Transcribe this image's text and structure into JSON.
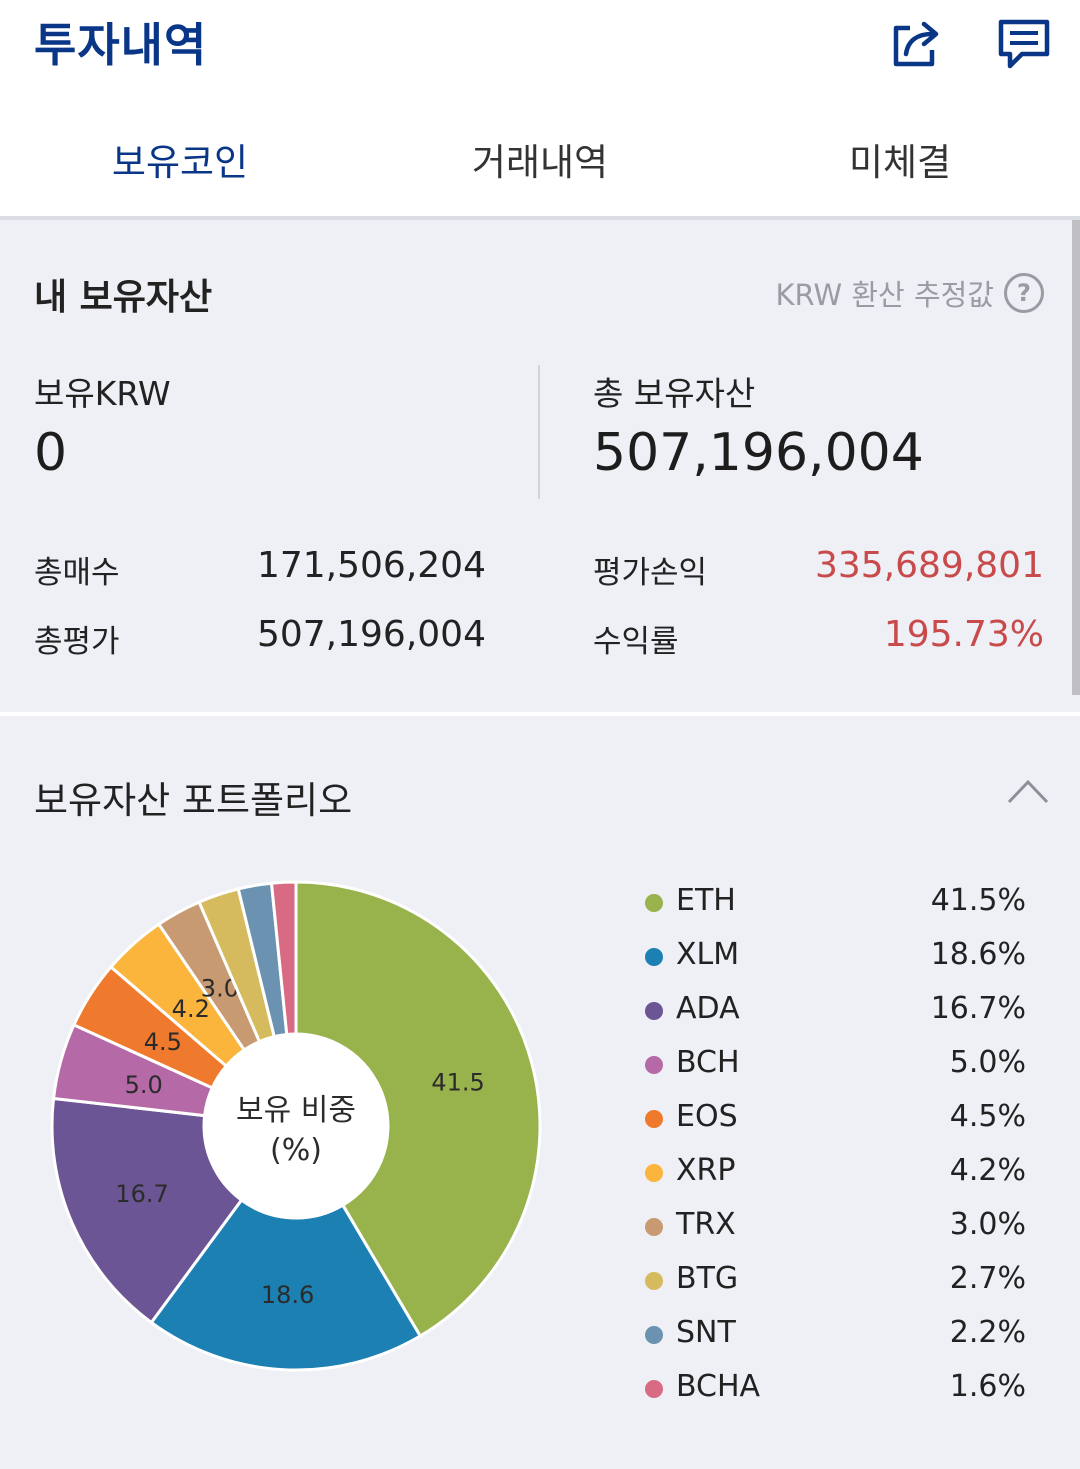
{
  "header": {
    "title": "투자내역",
    "share_icon": "share-icon",
    "message_icon": "message-icon"
  },
  "tabs": [
    {
      "label": "보유코인",
      "active": true
    },
    {
      "label": "거래내역",
      "active": false
    },
    {
      "label": "미체결",
      "active": false
    }
  ],
  "assets": {
    "title": "내 보유자산",
    "krw_note": "KRW 환산 추정값",
    "held_krw_label": "보유KRW",
    "held_krw_value": "0",
    "total_assets_label": "총 보유자산",
    "total_assets_value": "507,196,004",
    "rows": {
      "total_buy_label": "총매수",
      "total_buy_value": "171,506,204",
      "total_eval_label": "총평가",
      "total_eval_value": "507,196,004",
      "pnl_label": "평가손익",
      "pnl_value": "335,689,801",
      "return_label": "수익률",
      "return_value": "195.73%"
    },
    "profit_color": "#c84a4a"
  },
  "portfolio": {
    "title": "보유자산 포트폴리오",
    "center_label_line1": "보유 비중",
    "center_label_line2": "(%)",
    "legend": [
      {
        "name": "ETH",
        "value": "41.5%"
      },
      {
        "name": "XLM",
        "value": "18.6%"
      },
      {
        "name": "ADA",
        "value": "16.7%"
      },
      {
        "name": "BCH",
        "value": "5.0%"
      },
      {
        "name": "EOS",
        "value": "4.5%"
      },
      {
        "name": "XRP",
        "value": "4.2%"
      },
      {
        "name": "TRX",
        "value": "3.0%"
      },
      {
        "name": "BTG",
        "value": "2.7%"
      },
      {
        "name": "SNT",
        "value": "2.2%"
      },
      {
        "name": "BCHA",
        "value": "1.6%"
      }
    ]
  },
  "chart_data": {
    "type": "pie",
    "categories": [
      "ETH",
      "XLM",
      "ADA",
      "BCH",
      "EOS",
      "XRP",
      "TRX",
      "BTG",
      "SNT",
      "BCHA"
    ],
    "values": [
      41.5,
      18.6,
      16.7,
      5.0,
      4.5,
      4.2,
      3.0,
      2.7,
      2.2,
      1.6
    ],
    "slice_labels": [
      "41.5",
      "18.6",
      "16.7",
      "5.0",
      "4.5",
      "4.2",
      "3.0",
      "",
      "",
      ""
    ],
    "colors": [
      "#98b24c",
      "#1c80b2",
      "#6b5594",
      "#b56aa7",
      "#ef7a2e",
      "#fbb43c",
      "#c89a72",
      "#d6bb5e",
      "#6b92b1",
      "#d96a84"
    ],
    "donut": true
  }
}
